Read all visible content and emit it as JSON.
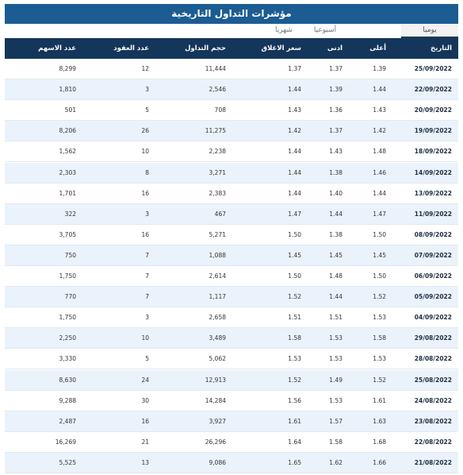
{
  "title": "مؤشرات التداول التاريخية",
  "tabs": [
    "يوميا",
    "أسبوعيا",
    "شهريا"
  ],
  "table": {
    "columns": [
      "التاريخ",
      "أعلى",
      "ادنى",
      "سعر الاغلاق",
      "حجم التداول",
      "عدد العقود",
      "عدد الاسهم"
    ],
    "rows": [
      [
        "25/09/2022",
        "1.39",
        "1.37",
        "1.37",
        "11,444",
        "12",
        "8,299"
      ],
      [
        "22/09/2022",
        "1.44",
        "1.39",
        "1.44",
        "2,546",
        "3",
        "1,810"
      ],
      [
        "20/09/2022",
        "1.43",
        "1.36",
        "1.43",
        "708",
        "5",
        "501"
      ],
      [
        "19/09/2022",
        "1.42",
        "1.37",
        "1.42",
        "11,275",
        "26",
        "8,206"
      ],
      [
        "18/09/2022",
        "1.48",
        "1.43",
        "1.44",
        "2,238",
        "10",
        "1,562"
      ],
      [
        "14/09/2022",
        "1.46",
        "1.38",
        "1.44",
        "3,271",
        "8",
        "2,303"
      ],
      [
        "13/09/2022",
        "1.44",
        "1.40",
        "1.44",
        "2,383",
        "16",
        "1,701"
      ],
      [
        "11/09/2022",
        "1.47",
        "1.44",
        "1.47",
        "467",
        "3",
        "322"
      ],
      [
        "08/09/2022",
        "1.50",
        "1.38",
        "1.50",
        "5,271",
        "16",
        "3,705"
      ],
      [
        "07/09/2022",
        "1.45",
        "1.45",
        "1.45",
        "1,088",
        "7",
        "750"
      ],
      [
        "06/09/2022",
        "1.50",
        "1.48",
        "1.50",
        "2,614",
        "7",
        "1,750"
      ],
      [
        "05/09/2022",
        "1.52",
        "1.44",
        "1.52",
        "1,117",
        "7",
        "770"
      ],
      [
        "04/09/2022",
        "1.53",
        "1.51",
        "1.51",
        "2,658",
        "3",
        "1,750"
      ],
      [
        "29/08/2022",
        "1.58",
        "1.53",
        "1.58",
        "3,489",
        "10",
        "2,250"
      ],
      [
        "28/08/2022",
        "1.53",
        "1.53",
        "1.53",
        "5,062",
        "5",
        "3,330"
      ],
      [
        "25/08/2022",
        "1.52",
        "1.49",
        "1.52",
        "12,913",
        "24",
        "8,630"
      ],
      [
        "24/08/2022",
        "1.61",
        "1.53",
        "1.56",
        "14,284",
        "30",
        "9,288"
      ],
      [
        "23/08/2022",
        "1.63",
        "1.57",
        "1.61",
        "3,927",
        "16",
        "2,487"
      ],
      [
        "22/08/2022",
        "1.68",
        "1.58",
        "1.64",
        "26,296",
        "21",
        "16,269"
      ],
      [
        "21/08/2022",
        "1.66",
        "1.62",
        "1.65",
        "9,086",
        "13",
        "5,525"
      ]
    ]
  }
}
